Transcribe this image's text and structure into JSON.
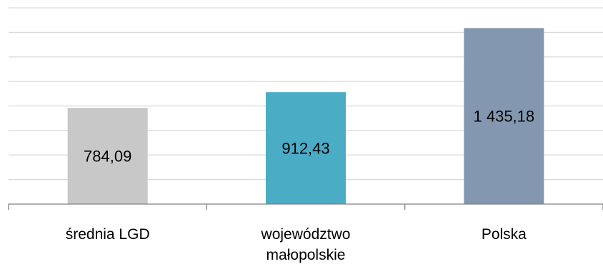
{
  "chart_data": {
    "type": "bar",
    "title": "",
    "xlabel": "",
    "ylabel": "",
    "categories": [
      [
        "średnia LGD"
      ],
      [
        "województwo",
        "małopolskie"
      ],
      [
        "Polska"
      ]
    ],
    "values": [
      784.09,
      912.43,
      1435.18
    ],
    "value_labels": [
      "784,09",
      "912,43",
      "1 435,18"
    ],
    "colors": [
      "#c8c8c8",
      "#4bacc6",
      "#8497b0"
    ],
    "ylim": [
      0,
      1600
    ],
    "gridlines": 8,
    "grid": true,
    "legend": "none"
  }
}
